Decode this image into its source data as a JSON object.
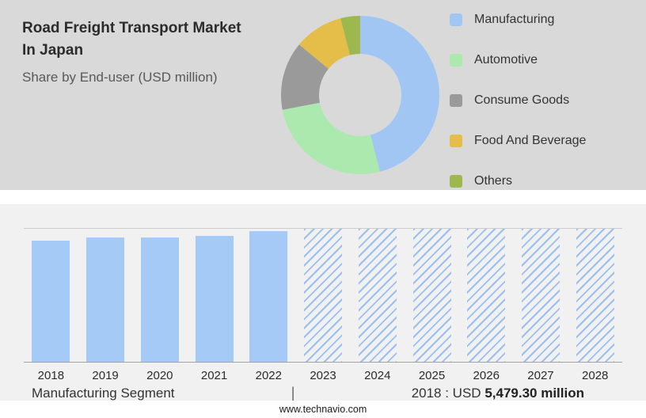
{
  "header": {
    "title_line1": "Road Freight Transport Market",
    "title_line2": "In Japan",
    "subtitle": "Share by End-user (USD million)"
  },
  "chart_data": [
    {
      "type": "pie",
      "title": "Share by End-user (USD million)",
      "donut": true,
      "legend_position": "right",
      "slices": [
        {
          "label": "Manufacturing",
          "value": 46,
          "color": "#A1C6F4"
        },
        {
          "label": "Automotive",
          "value": 26,
          "color": "#ABE9AE"
        },
        {
          "label": "Consume Goods",
          "value": 14,
          "color": "#9A9A9A"
        },
        {
          "label": "Food And Beverage",
          "value": 10,
          "color": "#E4BE49"
        },
        {
          "label": "Others",
          "value": 4,
          "color": "#9CB84F"
        }
      ]
    },
    {
      "type": "bar",
      "title": "Road Freight Transport Market In Japan",
      "xlabel": "",
      "ylabel": "USD million",
      "categories": [
        "2018",
        "2019",
        "2020",
        "2021",
        "2022",
        "2023",
        "2024",
        "2025",
        "2026",
        "2027",
        "2028"
      ],
      "values": [
        5479.3,
        5610,
        5590,
        5680,
        5900,
        null,
        null,
        null,
        null,
        null,
        null
      ],
      "forecast_years": [
        "2023",
        "2024",
        "2025",
        "2026",
        "2027",
        "2028"
      ],
      "ylim": [
        0,
        6000
      ],
      "grid": false,
      "bar_color": "#A6CAF6"
    }
  ],
  "caption": {
    "segment_label": "Manufacturing Segment",
    "separator": "|",
    "value_prefix": "2018 : USD",
    "value_bold": "5,479.30 million"
  },
  "footer": {
    "url": "www.technavio.com"
  }
}
